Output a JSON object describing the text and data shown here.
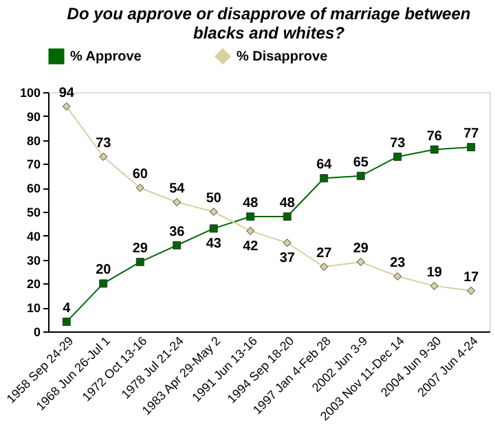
{
  "chart_data": {
    "type": "line",
    "title": [
      "Do you approve or disapprove of marriage between",
      "blacks and whites?"
    ],
    "categories": [
      "1958 Sep 24-29",
      "1968 Jun 26-Jul 1",
      "1972 Oct 13-16",
      "1978 Jul 21-24",
      "1983 Apr 29-May 2",
      "1991 Jun 13-16",
      "1994 Sep 18-20",
      "1997 Jan 4-Feb 28",
      "2002 Jun 3-9",
      "2003 Nov 11-Dec 14",
      "2004 Jun 9-30",
      "2007 Jun 4-24"
    ],
    "series": [
      {
        "name": "% Approve",
        "color": "#006600",
        "marker": "square",
        "values": [
          4,
          20,
          29,
          36,
          43,
          48,
          48,
          64,
          65,
          73,
          76,
          77
        ]
      },
      {
        "name": "% Disapprove",
        "color": "#d8d0a0",
        "marker": "diamond",
        "values": [
          94,
          73,
          60,
          54,
          50,
          42,
          37,
          27,
          29,
          23,
          19,
          17
        ]
      }
    ],
    "ylim": [
      0,
      100
    ],
    "yticks": [
      0,
      10,
      20,
      30,
      40,
      50,
      60,
      70,
      80,
      90,
      100
    ],
    "data_labels": true,
    "legend": "top",
    "grid": false,
    "line_style": "solid"
  }
}
